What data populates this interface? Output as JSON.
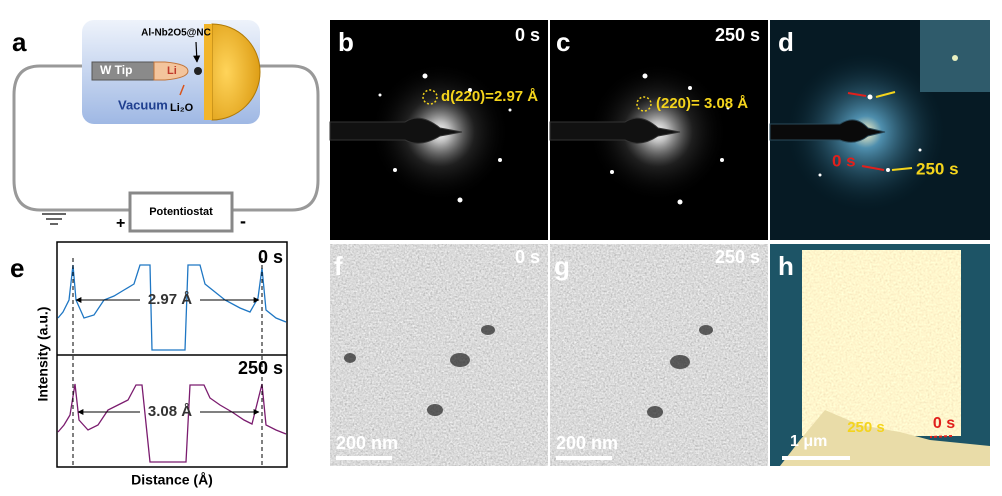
{
  "panels": {
    "a": {
      "label": "a",
      "sample": "Al-Nb2O5@NC",
      "tip": "W Tip",
      "li": "Li",
      "environment": "Vacuum",
      "product": "Li₂O",
      "instrument": "Potentiostat",
      "plus": "+",
      "minus": "-"
    },
    "b": {
      "label": "b",
      "time": "0 s",
      "annotation": "d(220)=2.97 Å"
    },
    "c": {
      "label": "c",
      "time": "250 s",
      "annotation": "(220)= 3.08 Å"
    },
    "d": {
      "label": "d",
      "marker_start": "0 s",
      "marker_end": "250 s"
    },
    "e": {
      "label": "e",
      "top_time": "0 s",
      "top_spacing": "2.97 Å",
      "bottom_time": "250 s",
      "bottom_spacing": "3.08 Å",
      "y_label": "Intensity (a.u.)",
      "x_label": "Distance (Å)"
    },
    "f": {
      "label": "f",
      "time": "0 s",
      "scale_bar": "200 nm"
    },
    "g": {
      "label": "g",
      "time": "250 s",
      "scale_bar": "200 nm"
    },
    "h": {
      "label": "h",
      "time_end": "250 s",
      "time_start": "0 s",
      "scale_bar": "1 μm"
    }
  }
}
